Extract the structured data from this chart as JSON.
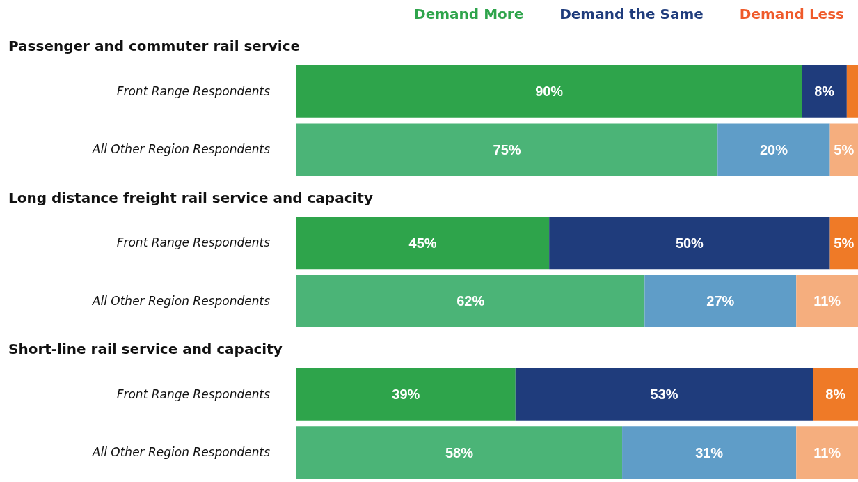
{
  "chart_data": {
    "type": "bar",
    "orientation": "horizontal",
    "stacked": true,
    "legend": "top right",
    "categories": [
      "Front Range Respondents",
      "All Other Region Respondents",
      "Front Range Respondents",
      "All Other Region Respondents",
      "Front Range Respondents",
      "All Other Region Respondents"
    ],
    "annotations": [
      "Passenger and commuter rail service",
      "Long distance freight rail service and capacity",
      "Short-line rail service and capacity"
    ],
    "series": [
      {
        "name": "Demand More",
        "color": "#2ea44b",
        "colors": [
          "#2ea44b",
          "#4bb477",
          "#2ea44b",
          "#4bb477",
          "#2ea44b",
          "#4bb477"
        ],
        "values": [
          90,
          75,
          45,
          62,
          39,
          58
        ],
        "value_labels": [
          "90%",
          "75%",
          "45%",
          "62%",
          "39%",
          "58%"
        ]
      },
      {
        "name": "Demand the Same",
        "color": "#1f3c7c",
        "colors": [
          "#1f3c7c",
          "#5f9dc8",
          "#1f3c7c",
          "#5f9dc8",
          "#1f3c7c",
          "#5f9dc8"
        ],
        "values": [
          8,
          20,
          50,
          27,
          53,
          31
        ],
        "value_labels": [
          "8%",
          "20%",
          "50%",
          "27%",
          "53%",
          "31%"
        ]
      },
      {
        "name": "Demand Less",
        "color": "#ef5a2a",
        "colors": [
          "#ef7a27",
          "#f5ae7e",
          "#ef7a27",
          "#f5ae7e",
          "#ef7a27",
          "#f5ae7e"
        ],
        "values": [
          2,
          5,
          5,
          11,
          8,
          11
        ],
        "value_labels": [
          null,
          "5%",
          "5%",
          "11%",
          "8%",
          "11%"
        ]
      }
    ]
  }
}
